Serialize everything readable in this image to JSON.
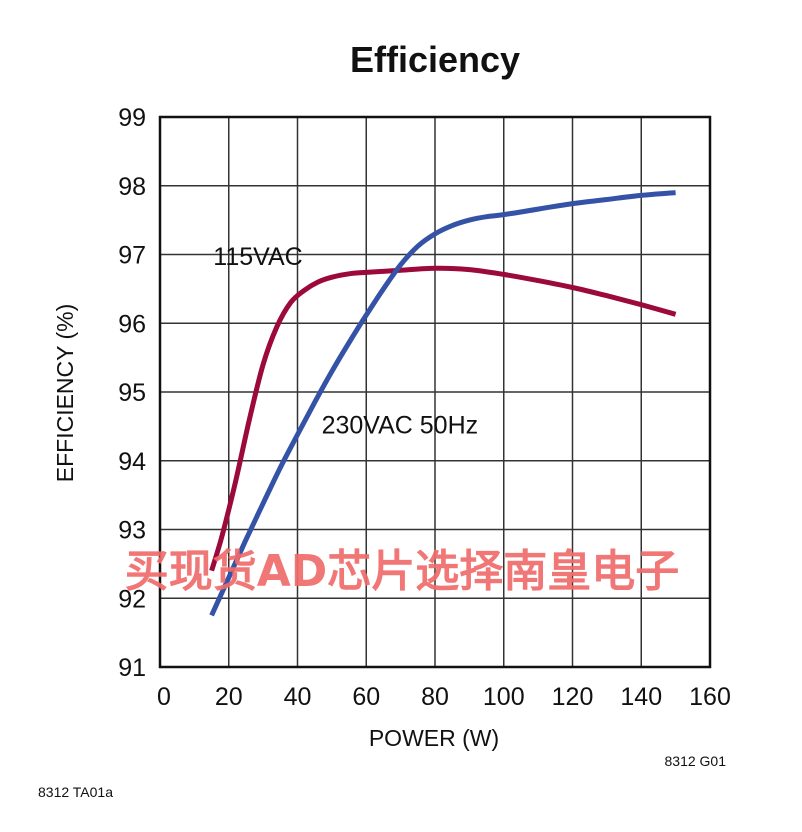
{
  "chart_data": {
    "type": "line",
    "title": "Efficiency",
    "xlabel": "POWER (W)",
    "ylabel": "EFFICIENCY (%)",
    "xlim": [
      0,
      160
    ],
    "ylim": [
      91,
      99
    ],
    "xticks": [
      0,
      20,
      40,
      60,
      80,
      100,
      120,
      140,
      160
    ],
    "yticks": [
      91,
      92,
      93,
      94,
      95,
      96,
      97,
      98,
      99
    ],
    "grid": true,
    "series": [
      {
        "name": "115VAC",
        "color": "#9b0a3a",
        "x": [
          15,
          18,
          22,
          26,
          30,
          34,
          38,
          42,
          46,
          50,
          55,
          60,
          70,
          80,
          90,
          100,
          110,
          120,
          130,
          140,
          150
        ],
        "y": [
          92.4,
          92.9,
          93.7,
          94.6,
          95.4,
          95.95,
          96.3,
          96.48,
          96.6,
          96.67,
          96.72,
          96.74,
          96.77,
          96.8,
          96.78,
          96.71,
          96.62,
          96.52,
          96.4,
          96.27,
          96.13
        ]
      },
      {
        "name": "230VAC 50Hz",
        "color": "#3553a6",
        "x": [
          15,
          20,
          25,
          30,
          35,
          40,
          45,
          50,
          55,
          60,
          65,
          70,
          75,
          80,
          85,
          90,
          95,
          100,
          110,
          120,
          130,
          140,
          150
        ],
        "y": [
          91.75,
          92.3,
          92.85,
          93.38,
          93.9,
          94.38,
          94.85,
          95.3,
          95.72,
          96.12,
          96.5,
          96.85,
          97.12,
          97.3,
          97.42,
          97.5,
          97.55,
          97.58,
          97.66,
          97.74,
          97.8,
          97.86,
          97.9
        ]
      }
    ],
    "annotations": [
      {
        "text": "115VAC",
        "x": 15.5,
        "y": 96.85
      },
      {
        "text": "230VAC 50Hz",
        "x": 47,
        "y": 94.4
      }
    ]
  },
  "figure_code": "8312 G01",
  "doc_code": "8312 TA01a",
  "watermark": "买现货AD芯片选择南皇电子"
}
